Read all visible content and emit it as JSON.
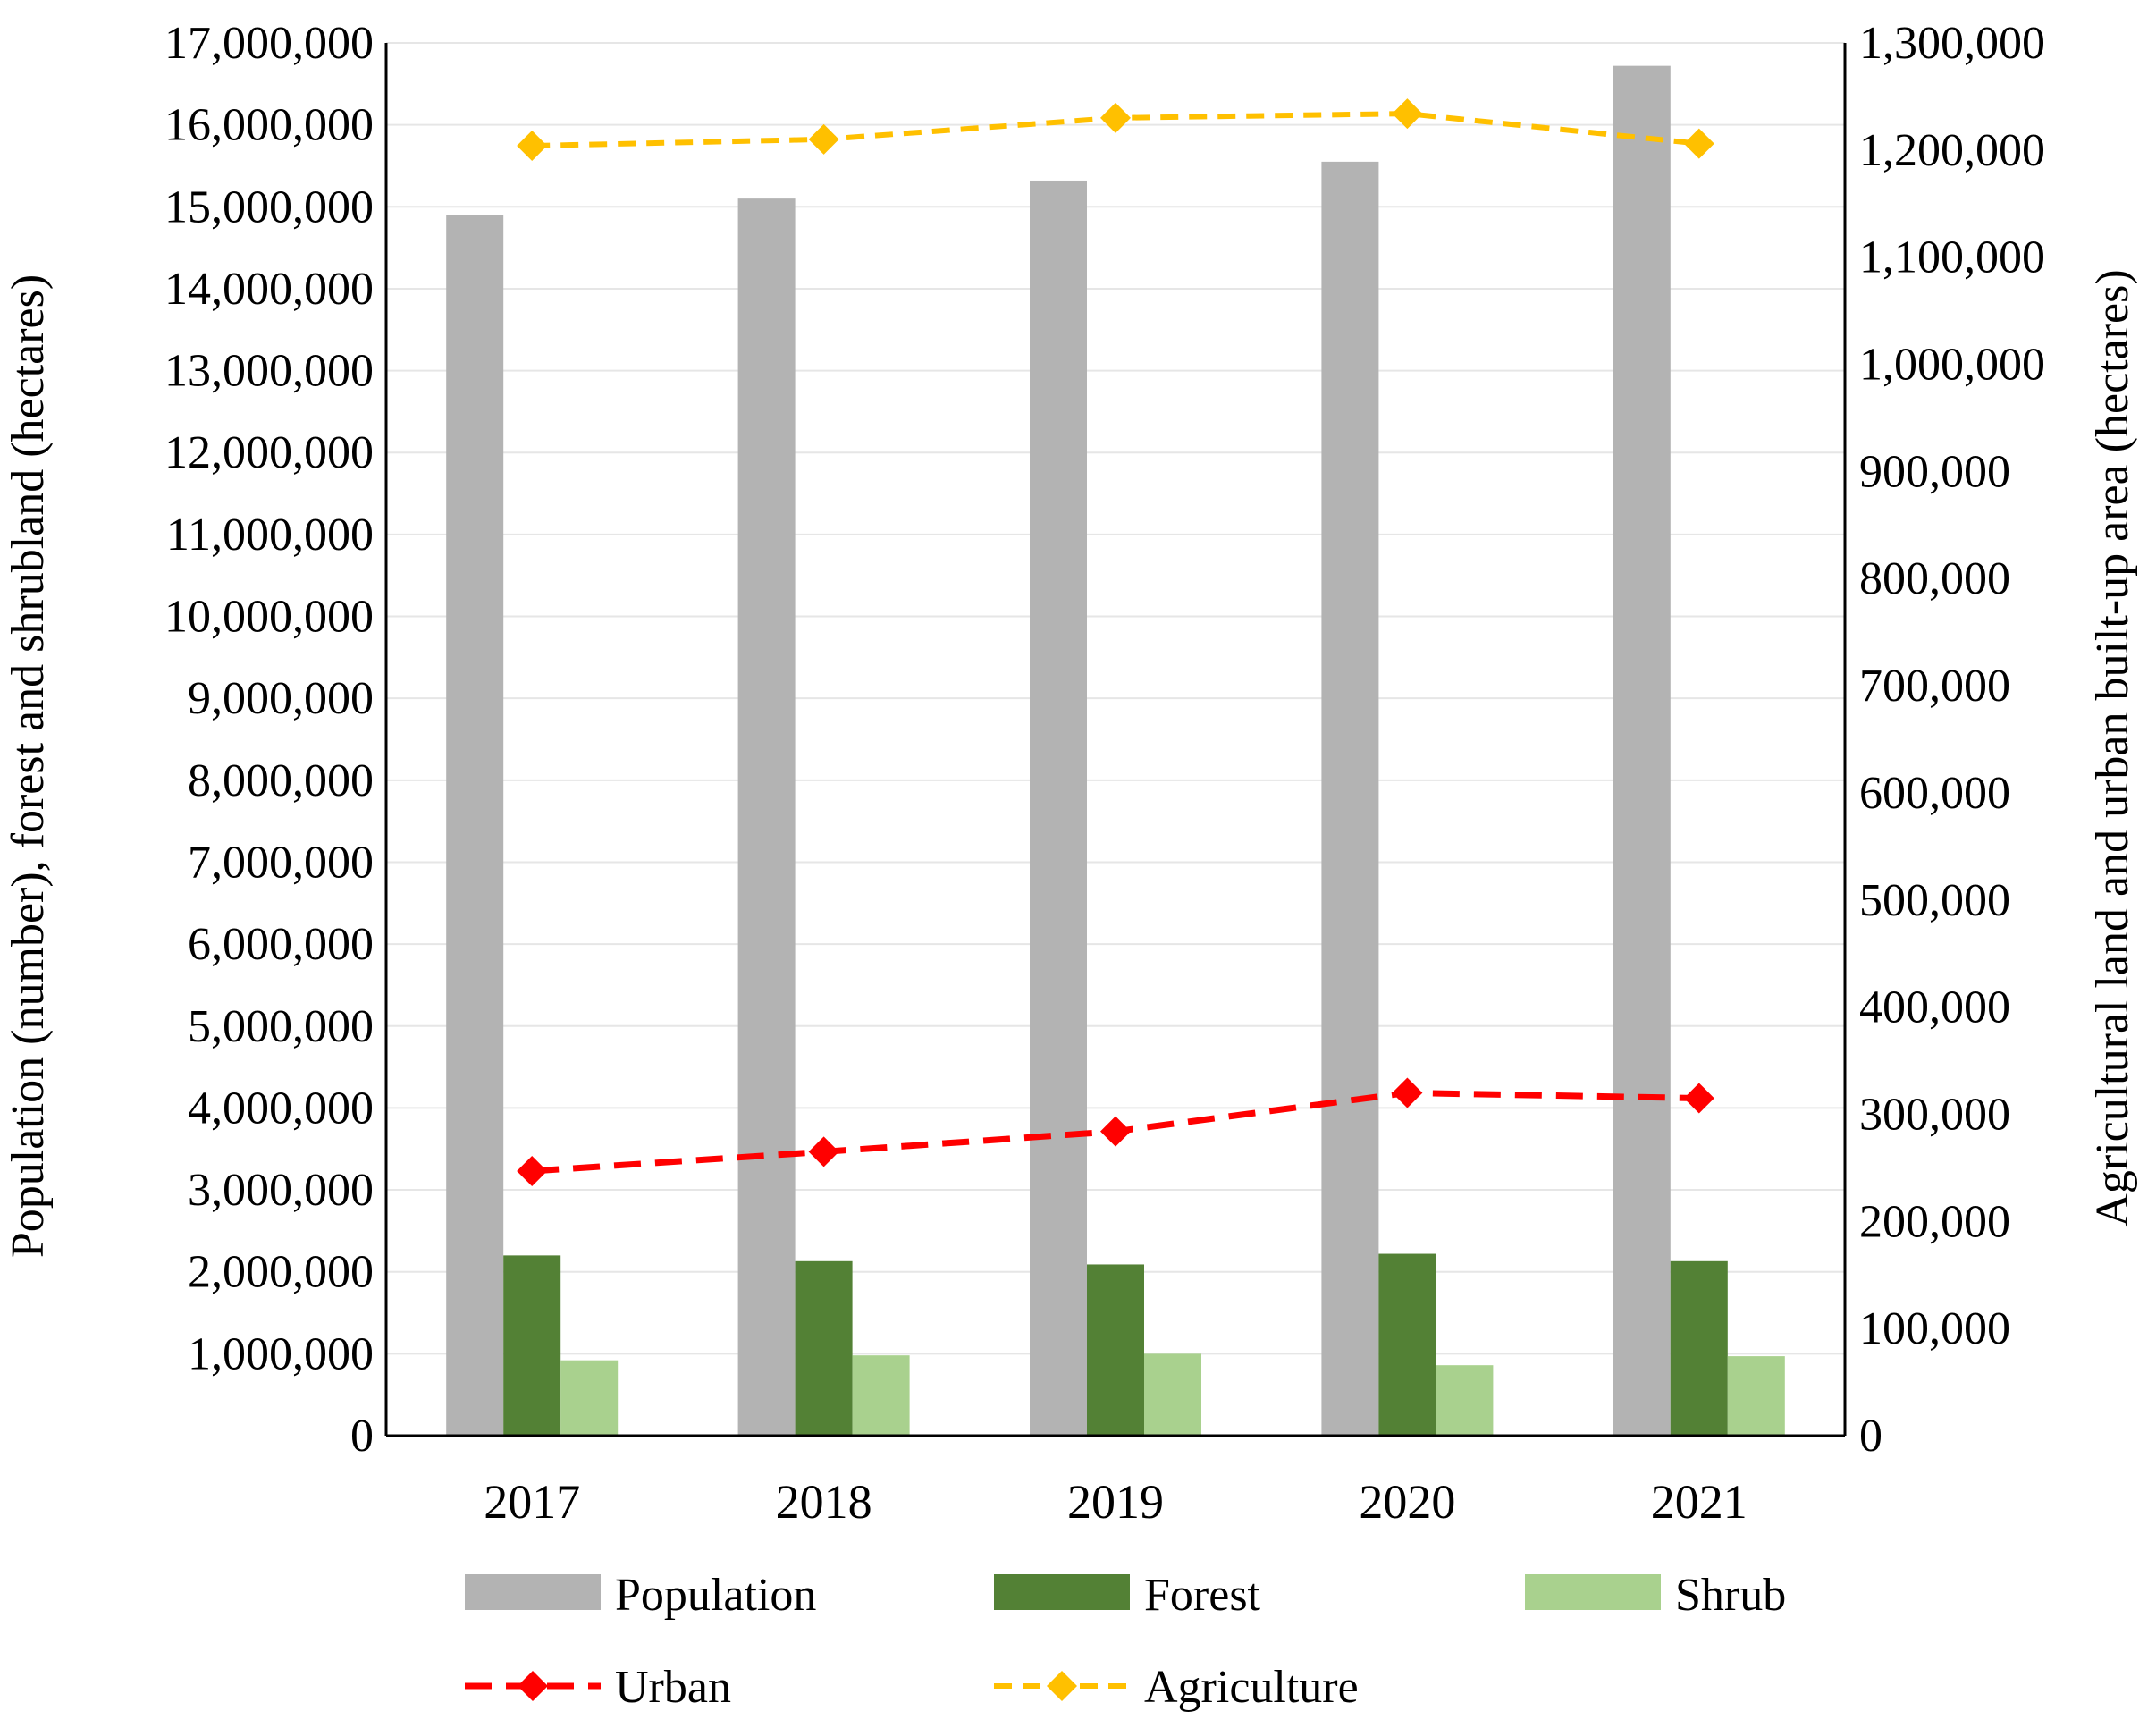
{
  "chart_data": {
    "type": "bar",
    "categories": [
      "2017",
      "2018",
      "2019",
      "2020",
      "2021"
    ],
    "series": [
      {
        "name": "Population",
        "kind": "bar",
        "axis": "left",
        "color": "#b3b3b3",
        "values": [
          14900000,
          15100000,
          15320000,
          15550000,
          16720000
        ]
      },
      {
        "name": "Forest",
        "kind": "bar",
        "axis": "left",
        "color": "#538135",
        "values": [
          2200000,
          2130000,
          2090000,
          2220000,
          2130000
        ]
      },
      {
        "name": "Shrub",
        "kind": "bar",
        "axis": "left",
        "color": "#a9d18e",
        "values": [
          920000,
          980000,
          1000000,
          860000,
          970000
        ]
      },
      {
        "name": "Urban",
        "kind": "line",
        "axis": "right",
        "color": "#ff0000",
        "marker": "diamond",
        "dash": "dashed",
        "values": [
          247000,
          265000,
          284000,
          320000,
          315000
        ]
      },
      {
        "name": "Agriculture",
        "kind": "line",
        "axis": "right",
        "color": "#ffc000",
        "marker": "diamond",
        "dash": "dashed",
        "values": [
          1204000,
          1210000,
          1230000,
          1234000,
          1206000
        ]
      }
    ],
    "ylabel": "Population (number), forest and shrubland (hectares)",
    "y2label": "Agricultural land and urban built-up area (hectares)",
    "ylim": [
      0,
      17000000
    ],
    "y2lim": [
      0,
      1300000
    ],
    "left_ticks": [
      "0",
      "1,000,000",
      "2,000,000",
      "3,000,000",
      "4,000,000",
      "5,000,000",
      "6,000,000",
      "7,000,000",
      "8,000,000",
      "9,000,000",
      "10,000,000",
      "11,000,000",
      "12,000,000",
      "13,000,000",
      "14,000,000",
      "15,000,000",
      "16,000,000",
      "17,000,000"
    ],
    "right_ticks": [
      "0",
      "100,000",
      "200,000",
      "300,000",
      "400,000",
      "500,000",
      "600,000",
      "700,000",
      "800,000",
      "900,000",
      "1,000,000",
      "1,100,000",
      "1,200,000",
      "1,300,000"
    ],
    "grid": true,
    "legend_position": "bottom"
  }
}
